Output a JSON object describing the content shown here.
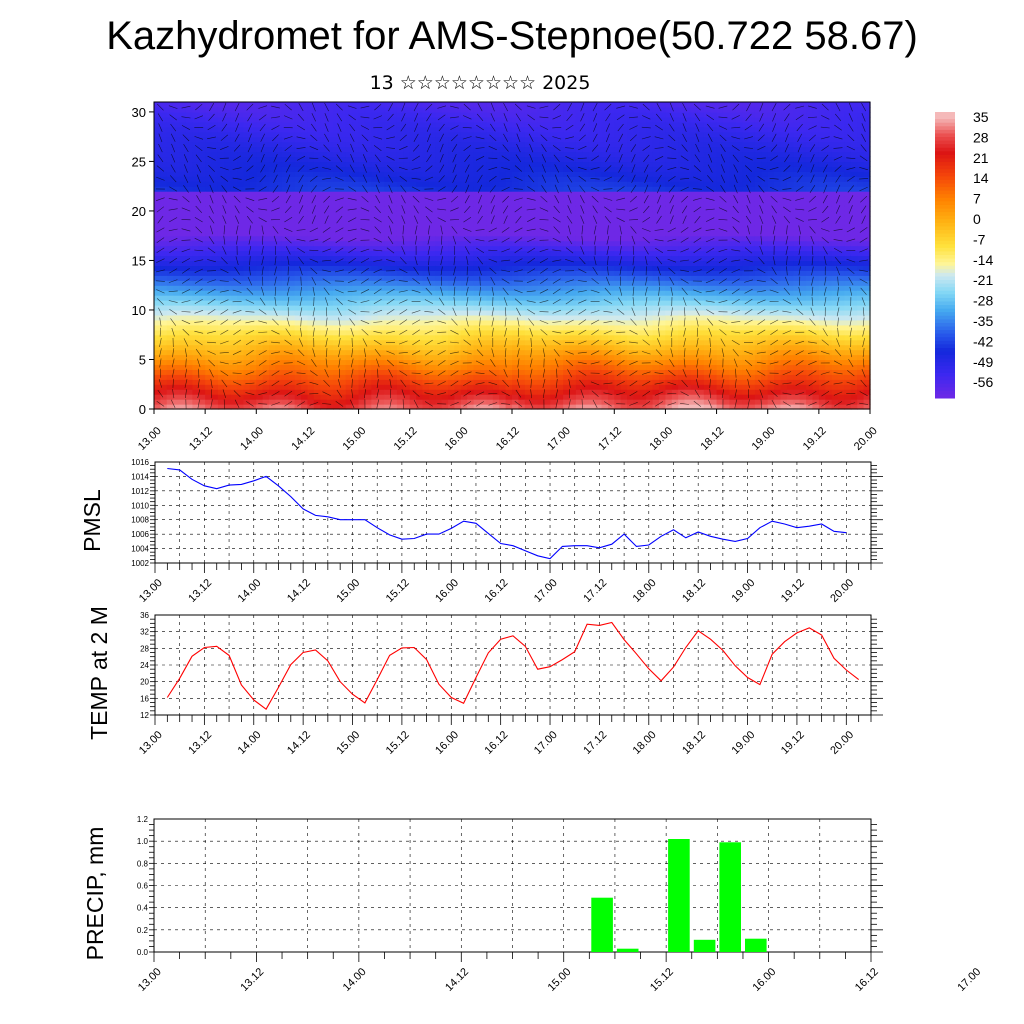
{
  "title": "Kazhydromet for AMS-Stepnoe(50.722 58.67)",
  "subtitle": "13 ☆☆☆☆☆☆☆☆ 2025",
  "time_labels": [
    "13.00",
    "13.12",
    "14.00",
    "14.12",
    "15.00",
    "15.12",
    "16.00",
    "16.12",
    "17.00",
    "17.12",
    "18.00",
    "18.12",
    "19.00",
    "19.12",
    "20.00"
  ],
  "chart_data": [
    {
      "type": "heatmap",
      "name": "cross-section",
      "y_ticks": [
        "0",
        "5",
        "10",
        "15",
        "20",
        "25",
        "30"
      ],
      "ylim": [
        0,
        31
      ],
      "colorbar_labels": [
        "35",
        "28",
        "21",
        "14",
        "7",
        "0",
        "-7",
        "-14",
        "-21",
        "-28",
        "-35",
        "-42",
        "-49",
        "-56"
      ],
      "colorbar_range": [
        -60,
        38
      ],
      "wind_vectors": true
    },
    {
      "type": "line",
      "ylabel": "PMSL",
      "ylim": [
        1002,
        1016
      ],
      "y_ticks": [
        "1002",
        "1004",
        "1006",
        "1008",
        "1010",
        "1012",
        "1014",
        "1016"
      ],
      "color": "#0000ff",
      "values": [
        1015.1,
        1014.9,
        1013.6,
        1012.7,
        1012.3,
        1012.8,
        1012.9,
        1013.4,
        1014.0,
        1012.7,
        1011.2,
        1009.5,
        1008.6,
        1008.4,
        1008.0,
        1008.0,
        1008.0,
        1006.9,
        1005.9,
        1005.3,
        1005.4,
        1006.0,
        1006.0,
        1006.8,
        1007.8,
        1007.5,
        1006.1,
        1004.7,
        1004.4,
        1003.7,
        1003.0,
        1002.6,
        1004.3,
        1004.4,
        1004.4,
        1004.1,
        1004.6,
        1006.0,
        1004.3,
        1004.5,
        1005.7,
        1006.6,
        1005.5,
        1006.3,
        1005.7,
        1005.3,
        1005.0,
        1005.4,
        1006.9,
        1007.8,
        1007.4,
        1006.9,
        1007.1,
        1007.4,
        1006.4,
        1006.2
      ]
    },
    {
      "type": "line",
      "ylabel": "TEMP at 2 M",
      "ylim": [
        12,
        36
      ],
      "y_ticks": [
        "12",
        "16",
        "20",
        "24",
        "28",
        "32",
        "36"
      ],
      "color": "#ff0000",
      "values": [
        16.2,
        20.8,
        26.1,
        28.2,
        28.5,
        26.3,
        19.2,
        15.6,
        13.4,
        18.6,
        24.1,
        27.0,
        27.6,
        25.0,
        20.0,
        17.0,
        14.9,
        20.5,
        26.3,
        28.1,
        28.2,
        25.3,
        19.4,
        16.2,
        14.8,
        21.0,
        26.9,
        30.2,
        31.0,
        28.5,
        23.0,
        23.6,
        25.3,
        27.2,
        33.8,
        33.5,
        34.2,
        30.1,
        26.7,
        23.1,
        20.2,
        23.5,
        28.2,
        32.2,
        30.2,
        27.5,
        23.8,
        21.0,
        19.3,
        26.6,
        29.6,
        31.7,
        32.9,
        31.2,
        25.6,
        22.8,
        20.5
      ]
    },
    {
      "type": "bar",
      "ylabel": "PRECIP, mm",
      "ylim": [
        0,
        1.2
      ],
      "y_ticks": [
        "0.0",
        "0.2",
        "0.4",
        "0.6",
        "0.8",
        "1.0",
        "1.2"
      ],
      "color": "#00ff00",
      "bars": [
        {
          "x": 17.5,
          "value": 0.49
        },
        {
          "x": 18.5,
          "value": 0.03
        },
        {
          "x": 20.5,
          "value": 1.02
        },
        {
          "x": 21.5,
          "value": 0.11
        },
        {
          "x": 22.5,
          "value": 0.99
        },
        {
          "x": 23.5,
          "value": 0.12
        }
      ]
    }
  ]
}
